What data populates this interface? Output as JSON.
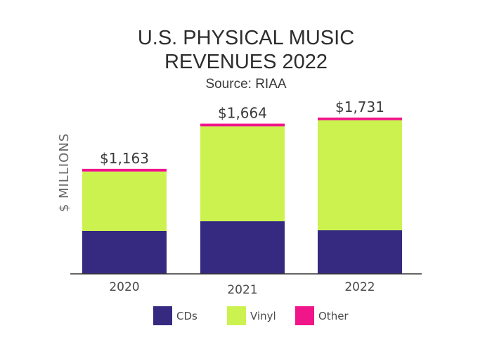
{
  "chart_data": {
    "type": "bar",
    "stacked": true,
    "title": "U.S. PHYSICAL MUSIC",
    "title_line2": "REVENUES 2022",
    "subtitle": "Source: RIAA",
    "xlabel": "",
    "ylabel": "$ MILLIONS",
    "ylim": [
      0,
      1731
    ],
    "grid": false,
    "legend_position": "bottom",
    "categories": [
      "2020",
      "2021",
      "2022"
    ],
    "totals": [
      1163,
      1664,
      1731
    ],
    "total_labels": [
      "$1,163",
      "$1,664",
      "$1,731"
    ],
    "series": [
      {
        "name": "CDs",
        "color": "#352a80",
        "values": [
          476,
          584,
          483
        ]
      },
      {
        "name": "Vinyl",
        "color": "#ccf250",
        "values": [
          657,
          1050,
          1218
        ]
      },
      {
        "name": "Other",
        "color": "#f0168a",
        "values": [
          30,
          30,
          30
        ]
      }
    ]
  }
}
